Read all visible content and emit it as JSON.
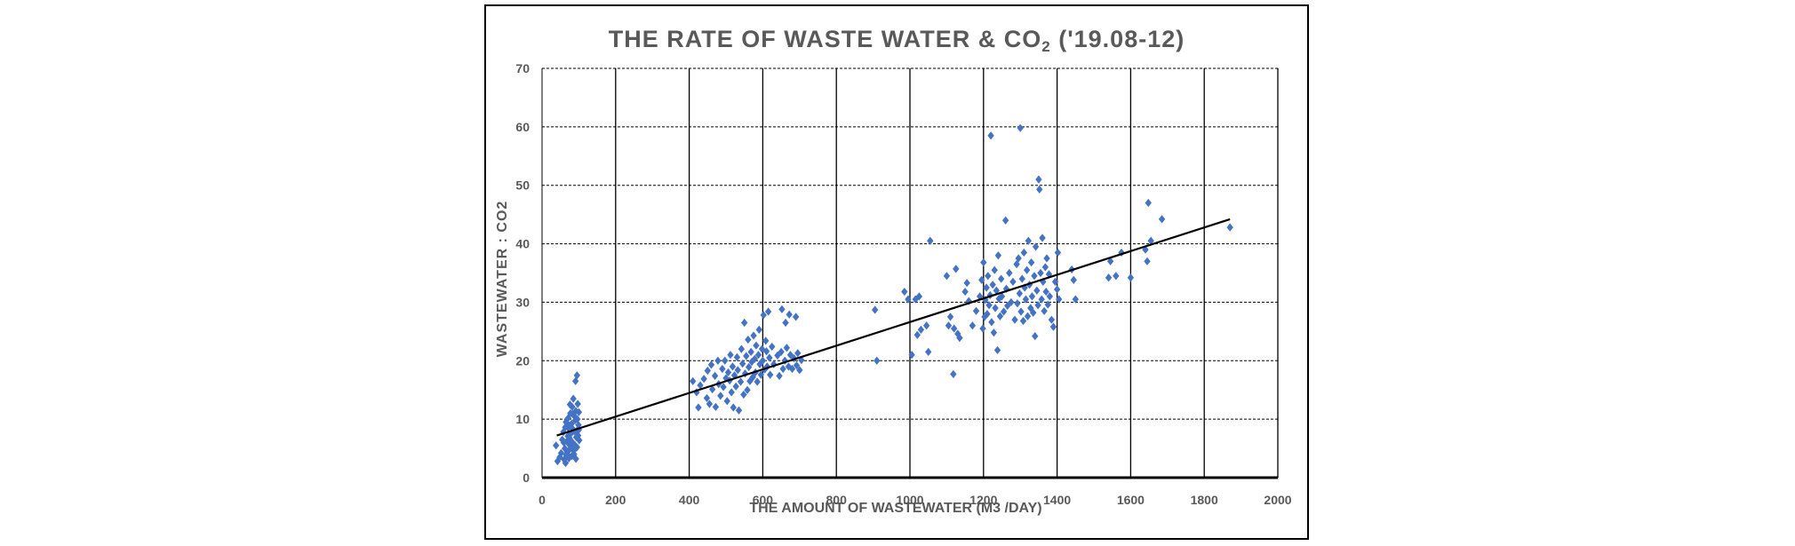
{
  "chart_data": {
    "type": "scatter",
    "title_main": "THE RATE OF WASTE WATER & CO",
    "title_sub": "2",
    "title_suffix": " ('19.08-12)",
    "xlabel": "THE AMOUNT OF WASTEWATER (M3 /DAY)",
    "ylabel": "WASTEWATER : CO2",
    "xlim": [
      0,
      2000
    ],
    "ylim": [
      0,
      70
    ],
    "xticks": [
      0,
      200,
      400,
      600,
      800,
      1000,
      1200,
      1400,
      1600,
      1800,
      2000
    ],
    "yticks": [
      0,
      10,
      20,
      30,
      40,
      50,
      60,
      70
    ],
    "grid": "vertical-solid, horizontal-dashed",
    "marker_color": "#4472C4",
    "trendline": {
      "x": [
        40,
        1870
      ],
      "y": [
        7.2,
        44.2
      ],
      "color": "#000000"
    },
    "series": [
      {
        "points": [
          [
            38,
            5.5
          ],
          [
            42,
            2.8
          ],
          [
            48,
            3.5
          ],
          [
            52,
            4.2
          ],
          [
            55,
            6.5
          ],
          [
            58,
            7.8
          ],
          [
            60,
            3.1
          ],
          [
            62,
            5.0
          ],
          [
            63,
            8.6
          ],
          [
            65,
            9.5
          ],
          [
            66,
            3.9
          ],
          [
            67,
            6.2
          ],
          [
            68,
            4.4
          ],
          [
            70,
            7.1
          ],
          [
            71,
            10.2
          ],
          [
            72,
            5.8
          ],
          [
            73,
            3.3
          ],
          [
            74,
            8.9
          ],
          [
            75,
            6.7
          ],
          [
            76,
            4.9
          ],
          [
            77,
            11.0
          ],
          [
            78,
            7.5
          ],
          [
            79,
            5.3
          ],
          [
            80,
            9.2
          ],
          [
            81,
            3.7
          ],
          [
            82,
            12.1
          ],
          [
            83,
            6.0
          ],
          [
            84,
            8.3
          ],
          [
            85,
            13.5
          ],
          [
            86,
            4.6
          ],
          [
            87,
            10.6
          ],
          [
            88,
            7.9
          ],
          [
            89,
            5.6
          ],
          [
            90,
            9.8
          ],
          [
            91,
            16.5
          ],
          [
            92,
            11.4
          ],
          [
            93,
            6.9
          ],
          [
            94,
            8.0
          ],
          [
            95,
            17.5
          ],
          [
            96,
            10.0
          ],
          [
            97,
            12.6
          ],
          [
            98,
            7.2
          ],
          [
            99,
            9.0
          ],
          [
            100,
            11.2
          ],
          [
            101,
            6.4
          ],
          [
            64,
            2.5
          ],
          [
            69,
            4.0
          ],
          [
            87,
            4.0
          ],
          [
            92,
            3.2
          ],
          [
            100,
            8.2
          ],
          [
            76,
            12.5
          ],
          [
            83,
            10.9
          ],
          [
            59,
            6.0
          ],
          [
            95,
            5.2
          ],
          [
            71,
            8.5
          ],
          [
            410,
            16.5
          ],
          [
            420,
            14.6
          ],
          [
            425,
            12.0
          ],
          [
            430,
            15.8
          ],
          [
            440,
            16.9
          ],
          [
            448,
            13.6
          ],
          [
            450,
            18.3
          ],
          [
            455,
            12.6
          ],
          [
            460,
            19.3
          ],
          [
            463,
            15.1
          ],
          [
            470,
            17.4
          ],
          [
            472,
            12.1
          ],
          [
            478,
            20.0
          ],
          [
            480,
            16.0
          ],
          [
            485,
            14.0
          ],
          [
            490,
            18.6
          ],
          [
            493,
            15.5
          ],
          [
            497,
            20.0
          ],
          [
            500,
            17.0
          ],
          [
            503,
            13.1
          ],
          [
            506,
            18.0
          ],
          [
            510,
            16.6
          ],
          [
            512,
            21.0
          ],
          [
            515,
            14.6
          ],
          [
            518,
            19.0
          ],
          [
            520,
            12.0
          ],
          [
            523,
            17.5
          ],
          [
            527,
            15.6
          ],
          [
            530,
            20.6
          ],
          [
            532,
            18.4
          ],
          [
            535,
            11.5
          ],
          [
            540,
            16.4
          ],
          [
            542,
            22.0
          ],
          [
            545,
            19.5
          ],
          [
            548,
            14.2
          ],
          [
            550,
            26.5
          ],
          [
            552,
            17.8
          ],
          [
            555,
            20.8
          ],
          [
            558,
            15.0
          ],
          [
            560,
            23.6
          ],
          [
            562,
            18.9
          ],
          [
            565,
            16.5
          ],
          [
            568,
            21.5
          ],
          [
            570,
            19.8
          ],
          [
            573,
            17.2
          ],
          [
            575,
            24.3
          ],
          [
            578,
            20.3
          ],
          [
            580,
            18.0
          ],
          [
            582,
            22.6
          ],
          [
            585,
            16.4
          ],
          [
            588,
            21.0
          ],
          [
            590,
            25.3
          ],
          [
            592,
            19.4
          ],
          [
            595,
            17.6
          ],
          [
            598,
            22.0
          ],
          [
            600,
            20.0
          ],
          [
            602,
            27.8
          ],
          [
            605,
            18.5
          ],
          [
            608,
            23.4
          ],
          [
            610,
            21.6
          ],
          [
            612,
            19.0
          ],
          [
            615,
            28.4
          ],
          [
            618,
            20.5
          ],
          [
            620,
            17.6
          ],
          [
            625,
            22.4
          ],
          [
            630,
            19.4
          ],
          [
            640,
            20.9
          ],
          [
            645,
            17.4
          ],
          [
            650,
            21.5
          ],
          [
            652,
            28.8
          ],
          [
            655,
            18.6
          ],
          [
            660,
            20.0
          ],
          [
            662,
            26.5
          ],
          [
            665,
            22.2
          ],
          [
            670,
            19.0
          ],
          [
            672,
            27.9
          ],
          [
            675,
            21.0
          ],
          [
            680,
            18.6
          ],
          [
            685,
            20.4
          ],
          [
            690,
            27.5
          ],
          [
            692,
            19.2
          ],
          [
            695,
            21.3
          ],
          [
            700,
            18.4
          ],
          [
            705,
            20.1
          ],
          [
            905,
            28.7
          ],
          [
            910,
            20.0
          ],
          [
            985,
            31.8
          ],
          [
            995,
            30.5
          ],
          [
            1005,
            21.0
          ],
          [
            1015,
            30.5
          ],
          [
            1020,
            24.4
          ],
          [
            1025,
            31.0
          ],
          [
            1030,
            25.3
          ],
          [
            1045,
            26.0
          ],
          [
            1050,
            21.5
          ],
          [
            1055,
            40.5
          ],
          [
            1100,
            34.5
          ],
          [
            1105,
            26.0
          ],
          [
            1110,
            27.5
          ],
          [
            1118,
            17.7
          ],
          [
            1120,
            25.5
          ],
          [
            1125,
            35.7
          ],
          [
            1130,
            24.6
          ],
          [
            1135,
            23.9
          ],
          [
            1150,
            31.8
          ],
          [
            1155,
            33.3
          ],
          [
            1160,
            30.2
          ],
          [
            1170,
            26.0
          ],
          [
            1180,
            28.5
          ],
          [
            1190,
            31.0
          ],
          [
            1195,
            33.8
          ],
          [
            1198,
            25.5
          ],
          [
            1200,
            36.8
          ],
          [
            1203,
            27.5
          ],
          [
            1205,
            30.4
          ],
          [
            1208,
            32.5
          ],
          [
            1210,
            28.0
          ],
          [
            1212,
            34.5
          ],
          [
            1215,
            29.5
          ],
          [
            1218,
            31.2
          ],
          [
            1220,
            58.5
          ],
          [
            1222,
            26.6
          ],
          [
            1225,
            33.0
          ],
          [
            1228,
            24.8
          ],
          [
            1230,
            35.5
          ],
          [
            1232,
            29.0
          ],
          [
            1235,
            32.0
          ],
          [
            1238,
            21.8
          ],
          [
            1240,
            38.0
          ],
          [
            1242,
            30.6
          ],
          [
            1245,
            27.6
          ],
          [
            1248,
            34.0
          ],
          [
            1250,
            31.0
          ],
          [
            1255,
            28.4
          ],
          [
            1260,
            44.0
          ],
          [
            1262,
            32.3
          ],
          [
            1265,
            29.4
          ],
          [
            1270,
            35.0
          ],
          [
            1275,
            30.0
          ],
          [
            1280,
            33.5
          ],
          [
            1285,
            27.0
          ],
          [
            1290,
            36.5
          ],
          [
            1292,
            29.8
          ],
          [
            1295,
            37.5
          ],
          [
            1298,
            31.5
          ],
          [
            1300,
            59.8
          ],
          [
            1302,
            28.4
          ],
          [
            1305,
            34.0
          ],
          [
            1308,
            26.8
          ],
          [
            1310,
            38.5
          ],
          [
            1312,
            32.5
          ],
          [
            1315,
            30.5
          ],
          [
            1318,
            35.5
          ],
          [
            1320,
            27.6
          ],
          [
            1322,
            40.5
          ],
          [
            1325,
            33.0
          ],
          [
            1328,
            29.0
          ],
          [
            1330,
            36.8
          ],
          [
            1332,
            31.0
          ],
          [
            1335,
            28.2
          ],
          [
            1338,
            34.5
          ],
          [
            1340,
            24.2
          ],
          [
            1342,
            39.5
          ],
          [
            1345,
            32.0
          ],
          [
            1348,
            29.5
          ],
          [
            1350,
            51.0
          ],
          [
            1352,
            49.3
          ],
          [
            1355,
            35.0
          ],
          [
            1358,
            30.5
          ],
          [
            1360,
            41.0
          ],
          [
            1362,
            33.5
          ],
          [
            1365,
            28.5
          ],
          [
            1368,
            36.0
          ],
          [
            1370,
            31.8
          ],
          [
            1372,
            37.5
          ],
          [
            1375,
            29.6
          ],
          [
            1378,
            34.8
          ],
          [
            1380,
            31.0
          ],
          [
            1385,
            27.0
          ],
          [
            1390,
            25.8
          ],
          [
            1395,
            33.5
          ],
          [
            1400,
            32.2
          ],
          [
            1402,
            38.5
          ],
          [
            1405,
            30.5
          ],
          [
            1440,
            35.6
          ],
          [
            1445,
            33.8
          ],
          [
            1450,
            30.5
          ],
          [
            1540,
            34.2
          ],
          [
            1545,
            37.0
          ],
          [
            1560,
            34.5
          ],
          [
            1575,
            38.5
          ],
          [
            1600,
            34.2
          ],
          [
            1640,
            39.0
          ],
          [
            1645,
            37.0
          ],
          [
            1648,
            47.0
          ],
          [
            1655,
            40.5
          ],
          [
            1685,
            44.2
          ],
          [
            1870,
            42.8
          ]
        ]
      }
    ]
  }
}
